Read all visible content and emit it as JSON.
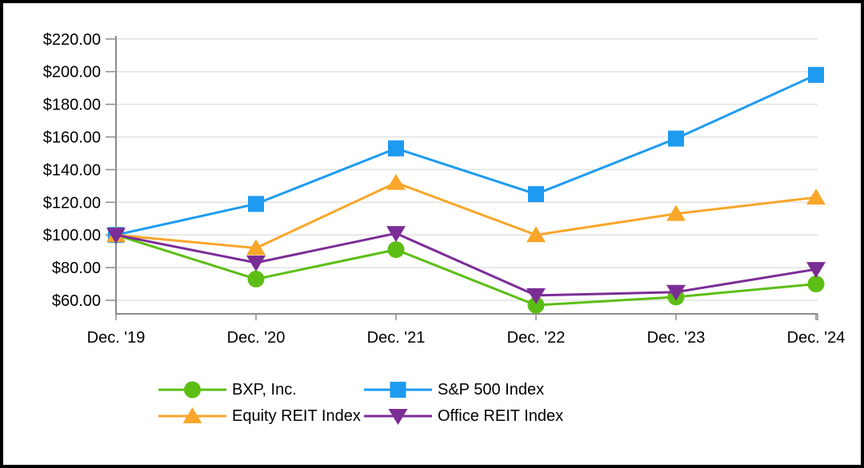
{
  "chart_data": {
    "type": "line",
    "title": "",
    "xlabel": "",
    "ylabel": "",
    "categories": [
      "Dec. '19",
      "Dec. '20",
      "Dec. '21",
      "Dec. '22",
      "Dec. '23",
      "Dec. '24"
    ],
    "series": [
      {
        "name": "BXP, Inc.",
        "color": "#5CBE14",
        "marker": "circle",
        "values": [
          100,
          73,
          91,
          57,
          62,
          70
        ]
      },
      {
        "name": "S&P 500 Index",
        "color": "#1E9BF0",
        "marker": "square",
        "values": [
          100,
          119,
          153,
          125,
          159,
          198
        ]
      },
      {
        "name": "Equity REIT Index",
        "color": "#F9A62B",
        "marker": "triangle-up",
        "values": [
          100,
          92,
          132,
          100,
          113,
          123
        ]
      },
      {
        "name": "Office REIT Index",
        "color": "#7B2D96",
        "marker": "triangle-down",
        "values": [
          100,
          83,
          101,
          63,
          65,
          79
        ]
      }
    ],
    "y_axis": {
      "ticks": [
        220,
        200,
        180,
        160,
        140,
        120,
        100,
        80,
        60
      ],
      "tick_labels": [
        "$220.00",
        "$200.00",
        "$180.00",
        "$160.00",
        "$140.00",
        "$120.00",
        "$100.00",
        "$80.00",
        "$60.00"
      ],
      "min": 52,
      "max": 228
    },
    "grid": true,
    "legend_position": "bottom",
    "styles": {
      "axis_color": "#8C8C8C",
      "gridline_color": "#E2E2E2",
      "text_color": "#000000",
      "background": "#FFFFFF",
      "frame_color": "#000000"
    }
  }
}
